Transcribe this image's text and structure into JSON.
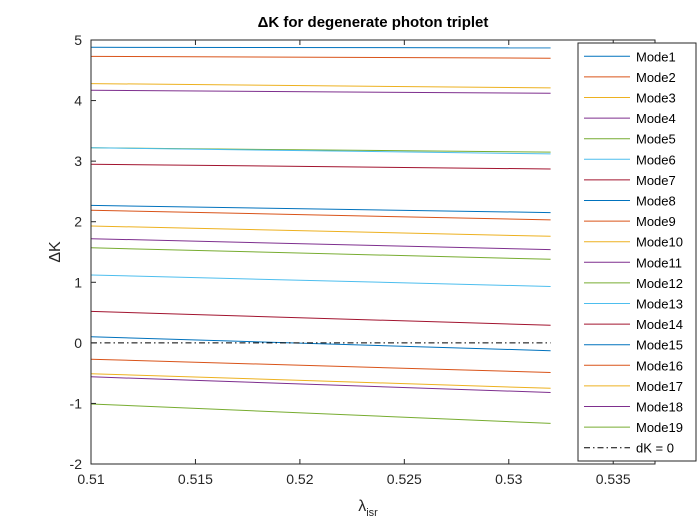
{
  "chart_data": {
    "type": "line",
    "title": "ΔK for degenerate photon triplet",
    "xlabel": "λ",
    "xlabel_sub": "isr",
    "ylabel": "ΔK",
    "xlim": [
      0.51,
      0.537
    ],
    "ylim": [
      -2,
      5
    ],
    "xticks": [
      "0.51",
      "0.515",
      "0.52",
      "0.525",
      "0.53",
      "0.535"
    ],
    "yticks": [
      "-2",
      "-1",
      "0",
      "1",
      "2",
      "3",
      "4",
      "5"
    ],
    "grid": false,
    "legend_position": "right",
    "x": [
      0.51,
      0.532
    ],
    "series": [
      {
        "name": "Mode1",
        "color": "#0072BD",
        "values": [
          4.88,
          4.87
        ]
      },
      {
        "name": "Mode2",
        "color": "#D95319",
        "values": [
          4.73,
          4.7
        ]
      },
      {
        "name": "Mode3",
        "color": "#EDB120",
        "values": [
          4.28,
          4.21
        ]
      },
      {
        "name": "Mode4",
        "color": "#7E2F8E",
        "values": [
          4.17,
          4.12
        ]
      },
      {
        "name": "Mode5",
        "color": "#77AC30",
        "values": [
          3.22,
          3.15
        ]
      },
      {
        "name": "Mode6",
        "color": "#4DBEEE",
        "values": [
          3.22,
          3.12
        ]
      },
      {
        "name": "Mode7",
        "color": "#A2142F",
        "values": [
          2.95,
          2.87
        ]
      },
      {
        "name": "Mode8",
        "color": "#0072BD",
        "values": [
          2.27,
          2.15
        ]
      },
      {
        "name": "Mode9",
        "color": "#D95319",
        "values": [
          2.19,
          2.03
        ]
      },
      {
        "name": "Mode10",
        "color": "#EDB120",
        "values": [
          1.93,
          1.76
        ]
      },
      {
        "name": "Mode11",
        "color": "#7E2F8E",
        "values": [
          1.72,
          1.54
        ]
      },
      {
        "name": "Mode12",
        "color": "#77AC30",
        "values": [
          1.57,
          1.38
        ]
      },
      {
        "name": "Mode13",
        "color": "#4DBEEE",
        "values": [
          1.12,
          0.93
        ]
      },
      {
        "name": "Mode14",
        "color": "#A2142F",
        "values": [
          0.52,
          0.29
        ]
      },
      {
        "name": "Mode15",
        "color": "#0072BD",
        "values": [
          0.1,
          -0.13
        ]
      },
      {
        "name": "Mode16",
        "color": "#D95319",
        "values": [
          -0.27,
          -0.49
        ]
      },
      {
        "name": "Mode17",
        "color": "#EDB120",
        "values": [
          -0.51,
          -0.75
        ]
      },
      {
        "name": "Mode18",
        "color": "#7E2F8E",
        "values": [
          -0.56,
          -0.82
        ]
      },
      {
        "name": "Mode19",
        "color": "#77AC30",
        "values": [
          -1.01,
          -1.33
        ]
      }
    ],
    "reference_line": {
      "name": "dK = 0",
      "y": 0,
      "color": "#000000",
      "style": "dash-dot"
    }
  }
}
